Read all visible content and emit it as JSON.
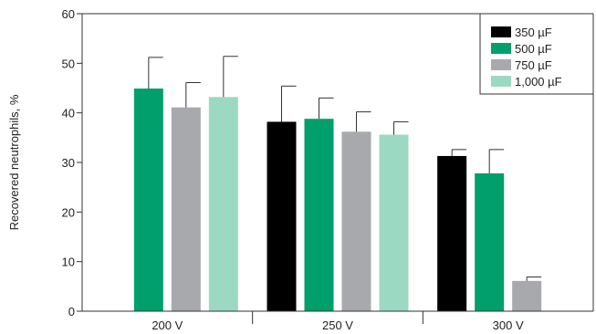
{
  "chart_data": {
    "type": "bar",
    "ylabel": "Recovered neutrophils, %",
    "xlabel": "",
    "ylim": [
      0,
      60
    ],
    "yticks": [
      0,
      10,
      20,
      30,
      40,
      50,
      60
    ],
    "categories": [
      "200 V",
      "250 V",
      "300 V"
    ],
    "legend_position": "top-right",
    "series": [
      {
        "name": "350 µF",
        "color": "#000000",
        "values": [
          null,
          38.2,
          31.3
        ],
        "errors": [
          null,
          7.2,
          1.3
        ]
      },
      {
        "name": "500 µF",
        "color": "#009f6b",
        "values": [
          44.9,
          38.8,
          27.8
        ],
        "errors": [
          6.3,
          4.2,
          4.8
        ]
      },
      {
        "name": "750 µF",
        "color": "#a7a9ac",
        "values": [
          41.1,
          36.2,
          6.1
        ],
        "errors": [
          5.0,
          4.0,
          0.8
        ]
      },
      {
        "name": "1,000 µF",
        "color": "#9cd9c3",
        "values": [
          43.2,
          35.6,
          null
        ],
        "errors": [
          8.2,
          2.6,
          null
        ]
      }
    ]
  }
}
